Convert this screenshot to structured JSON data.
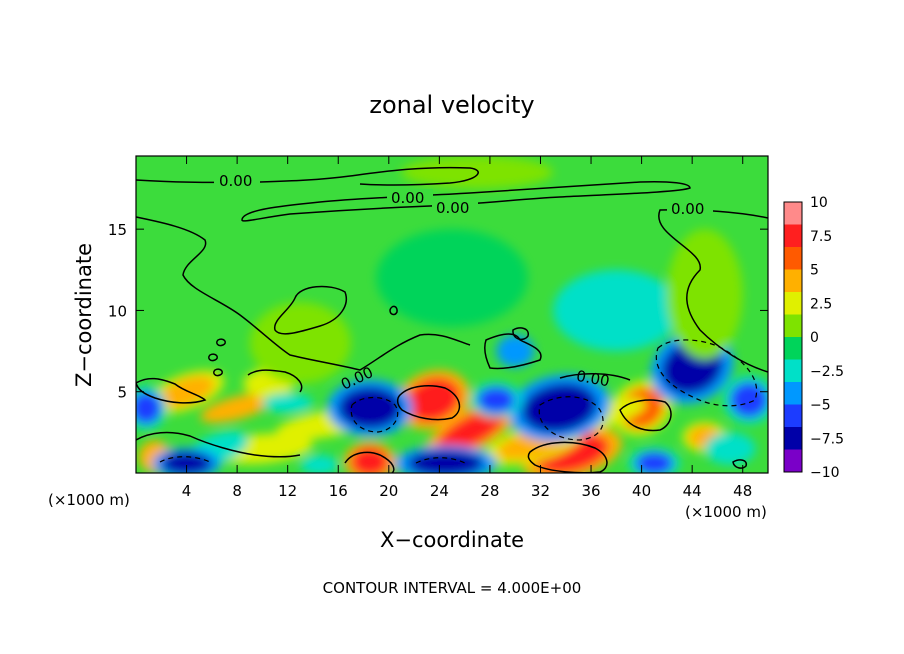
{
  "chart_data": {
    "type": "heatmap",
    "title": "zonal velocity",
    "xlabel": "X−coordinate",
    "ylabel": "Z−coordinate",
    "x_unit_left": "(×1000 m)",
    "x_unit_right": "(×1000 m)",
    "footer": "CONTOUR INTERVAL = 4.000E+00",
    "xlim": [
      0,
      50
    ],
    "ylim": [
      0,
      19.5
    ],
    "x_ticks": [
      4,
      8,
      12,
      16,
      20,
      24,
      28,
      32,
      36,
      40,
      44,
      48
    ],
    "x_tick_labels": [
      "4",
      "8",
      "12",
      "16",
      "20",
      "24",
      "28",
      "32",
      "36",
      "40",
      "44",
      "48"
    ],
    "y_ticks": [
      5,
      10,
      15
    ],
    "y_tick_labels": [
      "5",
      "10",
      "15"
    ],
    "colorbar": {
      "range": [
        -10,
        10
      ],
      "ticks": [
        10,
        7.5,
        5,
        2.5,
        0,
        -2.5,
        -5,
        -7.5,
        -10
      ],
      "tick_labels": [
        "10",
        "7.5",
        "5",
        "2.5",
        "0",
        "−2.5",
        "−5",
        "−7.5",
        "−10"
      ],
      "colors": [
        "#ff8a8a",
        "#ff1f1f",
        "#ff5a00",
        "#ffb000",
        "#e0f000",
        "#7ee300",
        "#00d45a",
        "#00e0c8",
        "#0098ff",
        "#1c3cff",
        "#0000a8",
        "#7a00c8"
      ]
    },
    "contour_labels": [
      "0.00",
      "0.00",
      "0.00",
      "0.00",
      "0.00",
      "0.00"
    ],
    "features": [
      {
        "x": 23.5,
        "z": 4.5,
        "value": 8,
        "rx": 2.2,
        "rz": 1.3,
        "angle": -20
      },
      {
        "x": 26.5,
        "z": 2.6,
        "value": 7,
        "rx": 3,
        "rz": 0.9,
        "angle": -28
      },
      {
        "x": 34.5,
        "z": 1.2,
        "value": 7.5,
        "rx": 3,
        "rz": 1.1,
        "angle": -15
      },
      {
        "x": 31.5,
        "z": 1.8,
        "value": 4.5,
        "rx": 3,
        "rz": 0.8,
        "angle": -15
      },
      {
        "x": 18.5,
        "z": 0.7,
        "value": 7.5,
        "rx": 1.5,
        "rz": 0.9,
        "angle": 0
      },
      {
        "x": 4,
        "z": 5,
        "value": 5,
        "rx": 2.3,
        "rz": 0.8,
        "angle": -20
      },
      {
        "x": 1.5,
        "z": 1,
        "value": 3.5,
        "rx": 1.3,
        "rz": 1,
        "angle": 0
      },
      {
        "x": 8,
        "z": 4,
        "value": 3.5,
        "rx": 3,
        "rz": 0.7,
        "angle": -15
      },
      {
        "x": 15,
        "z": 3,
        "value": 2.5,
        "rx": 4,
        "rz": 0.8,
        "angle": -10
      },
      {
        "x": 10,
        "z": 1.5,
        "value": 3,
        "rx": 4,
        "rz": 0.9,
        "angle": -5
      },
      {
        "x": 6.5,
        "z": 1.5,
        "value": -2.5,
        "rx": 2.5,
        "rz": 0.9,
        "angle": -20
      },
      {
        "x": 40,
        "z": 4,
        "value": 6,
        "rx": 1.8,
        "rz": 1.2,
        "angle": -30
      },
      {
        "x": 45,
        "z": 2.2,
        "value": 5,
        "rx": 1.3,
        "rz": 0.7,
        "angle": 0
      },
      {
        "x": 36.5,
        "z": 3.5,
        "value": 2.5,
        "rx": 4,
        "rz": 0.8,
        "angle": -15
      },
      {
        "x": 18.5,
        "z": 4,
        "value": -7,
        "rx": 2.5,
        "rz": 1.3,
        "angle": 0
      },
      {
        "x": 33.5,
        "z": 4,
        "value": -7,
        "rx": 3,
        "rz": 1.5,
        "angle": -10
      },
      {
        "x": 44,
        "z": 6.5,
        "value": -7.5,
        "rx": 2.5,
        "rz": 1.6,
        "angle": -25
      },
      {
        "x": 48.5,
        "z": 4.5,
        "value": -5,
        "rx": 1.5,
        "rz": 1.1,
        "angle": 0
      },
      {
        "x": 28.5,
        "z": 4.5,
        "value": -5,
        "rx": 1.5,
        "rz": 0.8,
        "angle": 0
      },
      {
        "x": 4,
        "z": 0.6,
        "value": -8,
        "rx": 2,
        "rz": 0.7,
        "angle": 0
      },
      {
        "x": 0.8,
        "z": 4,
        "value": -6,
        "rx": 1.2,
        "rz": 1,
        "angle": 0
      },
      {
        "x": 24.5,
        "z": 0.6,
        "value": -7.5,
        "rx": 3,
        "rz": 0.8,
        "angle": 0
      },
      {
        "x": 14.5,
        "z": 0.5,
        "value": -3,
        "rx": 1.5,
        "rz": 0.6,
        "angle": 0
      },
      {
        "x": 41,
        "z": 0.6,
        "value": -5,
        "rx": 1.5,
        "rz": 0.7,
        "angle": 0
      },
      {
        "x": 47,
        "z": 1.5,
        "value": -3,
        "rx": 2,
        "rz": 1,
        "angle": 0
      },
      {
        "x": 10.5,
        "z": 5.5,
        "value": 3,
        "rx": 2,
        "rz": 0.9,
        "angle": 0
      },
      {
        "x": 12,
        "z": 4.3,
        "value": -3,
        "rx": 2,
        "rz": 0.6,
        "angle": 0
      },
      {
        "x": 30,
        "z": 7.5,
        "value": -3.5,
        "rx": 1.5,
        "rz": 1,
        "angle": 0
      },
      {
        "x": 38,
        "z": 10,
        "value": -2,
        "rx": 5,
        "rz": 2.5,
        "angle": 0
      },
      {
        "x": 25,
        "z": 12,
        "value": -1.5,
        "rx": 6,
        "rz": 3,
        "angle": 0
      },
      {
        "x": 27,
        "z": 18.5,
        "value": 1.5,
        "rx": 6,
        "rz": 1,
        "angle": 0
      },
      {
        "x": 45,
        "z": 11,
        "value": 1.2,
        "rx": 3,
        "rz": 4,
        "angle": 0
      },
      {
        "x": 13,
        "z": 8,
        "value": 1,
        "rx": 4,
        "rz": 2.5,
        "angle": 0
      }
    ]
  }
}
